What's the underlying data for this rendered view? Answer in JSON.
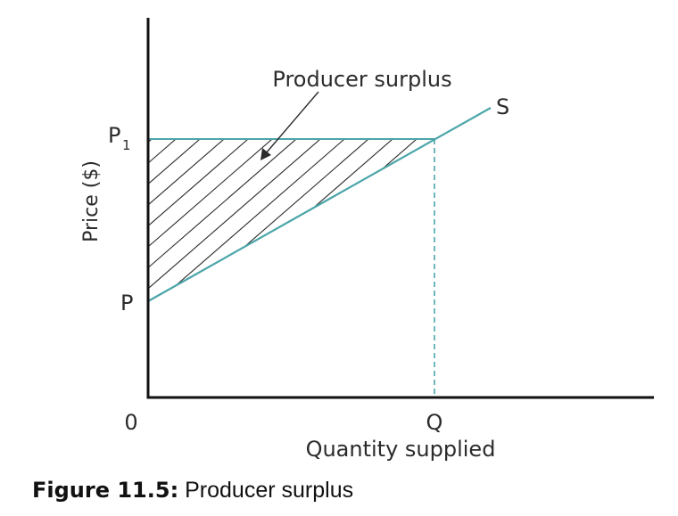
{
  "diagram": {
    "y_axis_label": "Price ($)",
    "x_axis_label": "Quantity supplied",
    "origin_label": "0",
    "p_label": "P",
    "p1_label_main": "P",
    "p1_label_sub": "1",
    "q_label": "Q",
    "supply_label": "S",
    "region_label": "Producer surplus"
  },
  "caption": {
    "number": "Figure 11.5:",
    "text": "Producer surplus"
  },
  "colors": {
    "axis": "#111111",
    "supply_curve": "#4ba5a9",
    "hatch": "#2b2b2b",
    "text": "#2b2b2b"
  }
}
